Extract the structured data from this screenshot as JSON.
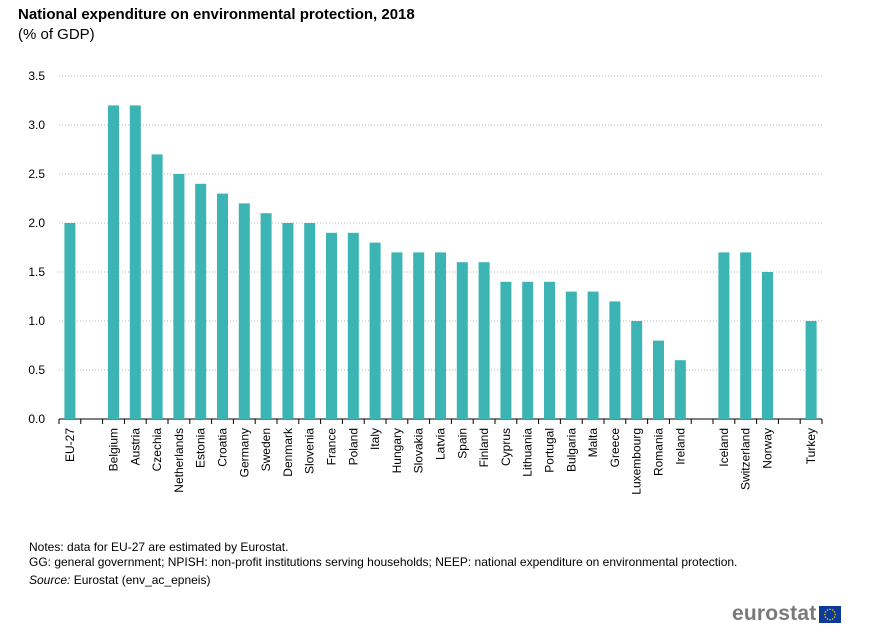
{
  "header": {
    "title": "National expenditure on environmental protection, 2018",
    "subtitle": "(% of GDP)"
  },
  "notes": {
    "line1": "Notes: data for EU-27 are estimated by Eurostat.",
    "line2": "GG: general government; NPISH: non-profit institutions serving households; NEEP: national expenditure on environmental protection.",
    "source_label": "Source:",
    "source_text": "Eurostat (env_ac_epneis)"
  },
  "logo": {
    "text": "eurostat",
    "flag_color": "#0d3b99",
    "star_color": "#ffcc00"
  },
  "colors": {
    "bar": "#3cb4b4",
    "grid": "#b4b4b4",
    "axis": "#000000"
  },
  "chart_data": {
    "type": "bar",
    "title": "National expenditure on environmental protection, 2018",
    "subtitle": "(% of GDP)",
    "xlabel": "",
    "ylabel": "",
    "ylim": [
      0,
      3.5
    ],
    "yticks": [
      "0.0",
      "0.5",
      "1.0",
      "1.5",
      "2.0",
      "2.5",
      "3.0",
      "3.5"
    ],
    "grid": true,
    "categories": [
      "EU-27",
      "",
      "Belgium",
      "Austria",
      "Czechia",
      "Netherlands",
      "Estonia",
      "Croatia",
      "Germany",
      "Sweden",
      "Denmark",
      "Slovenia",
      "France",
      "Poland",
      "Italy",
      "Hungary",
      "Slovakia",
      "Latvia",
      "Spain",
      "Finland",
      "Cyprus",
      "Lithuania",
      "Portugal",
      "Bulgaria",
      "Malta",
      "Greece",
      "Luxembourg",
      "Romania",
      "Ireland",
      "",
      "Iceland",
      "Switzerland",
      "Norway",
      "",
      "Turkey"
    ],
    "values": [
      2.0,
      null,
      3.2,
      3.2,
      2.7,
      2.5,
      2.4,
      2.3,
      2.2,
      2.1,
      2.0,
      2.0,
      1.9,
      1.9,
      1.8,
      1.7,
      1.7,
      1.7,
      1.6,
      1.6,
      1.4,
      1.4,
      1.4,
      1.3,
      1.3,
      1.2,
      1.0,
      0.8,
      0.6,
      null,
      1.7,
      1.7,
      1.5,
      null,
      1.0
    ]
  }
}
